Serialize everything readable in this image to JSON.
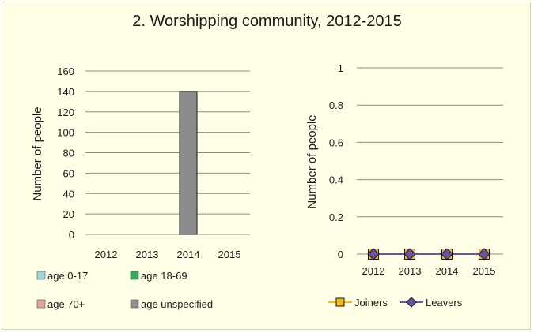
{
  "title": "2. Worshipping community, 2012-2015",
  "colors": {
    "background": "#fffee6",
    "grid": "#8c8c8c",
    "age_0_17": "#9fd6de",
    "age_18_69": "#2fae58",
    "age_70_plus": "#e4a39d",
    "age_unspecified": "#8c8c8c",
    "joiners": "#f5b81a",
    "leavers": "#6b52a4"
  },
  "chart_data": [
    {
      "type": "bar",
      "title": "",
      "xlabel": "",
      "ylabel": "Number of people",
      "categories": [
        "2012",
        "2013",
        "2014",
        "2015"
      ],
      "ylim": [
        0,
        160
      ],
      "yticks": [
        "0",
        "20",
        "40",
        "60",
        "80",
        "100",
        "120",
        "140",
        "160"
      ],
      "grid": true,
      "legend_position": "bottom",
      "series": [
        {
          "name": "age 0-17",
          "values": [
            0,
            0,
            0,
            0
          ]
        },
        {
          "name": "age 18-69",
          "values": [
            0,
            0,
            0,
            0
          ]
        },
        {
          "name": "age 70+",
          "values": [
            0,
            0,
            0,
            0
          ]
        },
        {
          "name": "age unspecified",
          "values": [
            0,
            0,
            140,
            0
          ]
        }
      ]
    },
    {
      "type": "line",
      "title": "",
      "xlabel": "",
      "ylabel": "Number of people",
      "categories": [
        "2012",
        "2013",
        "2014",
        "2015"
      ],
      "ylim": [
        0,
        1
      ],
      "yticks": [
        "0",
        "0.2",
        "0.4",
        "0.6",
        "0.8",
        "1"
      ],
      "grid": true,
      "legend_position": "bottom",
      "series": [
        {
          "name": "Joiners",
          "values": [
            0,
            0,
            0,
            0
          ]
        },
        {
          "name": "Leavers",
          "values": [
            0,
            0,
            0,
            0
          ]
        }
      ]
    }
  ]
}
